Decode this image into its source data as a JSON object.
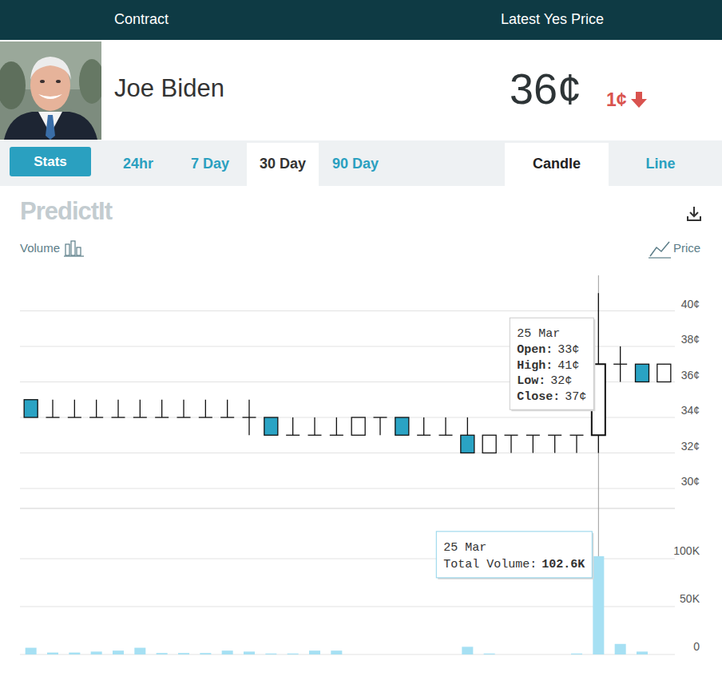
{
  "header": {
    "columns": [
      "Contract",
      "Latest Yes Price"
    ]
  },
  "contract": {
    "name": "Joe Biden",
    "price": "36¢",
    "change": "1¢"
  },
  "tabs": {
    "ranges": [
      "Stats",
      "24hr",
      "7 Day",
      "30 Day",
      "90 Day"
    ],
    "selected_range": "30 Day",
    "views": [
      "Candle",
      "Line"
    ],
    "selected_view": "Candle"
  },
  "toolbar": {
    "logo": "PredictIt",
    "volume": "Volume",
    "price": "Price"
  },
  "chart_data": [
    {
      "type": "candlestick",
      "categories": [
        null,
        null,
        null,
        null,
        null,
        null,
        null,
        null,
        null,
        null,
        null,
        null,
        null,
        null,
        null,
        null,
        null,
        null,
        null,
        null,
        null,
        null,
        null,
        null,
        null,
        null,
        "25 Mar",
        null,
        null,
        null
      ],
      "open": [
        35,
        34,
        34,
        34,
        34,
        34,
        34,
        34,
        34,
        34,
        34,
        34,
        33,
        33,
        33,
        33,
        34,
        34,
        33,
        33,
        33,
        32,
        33,
        33,
        33,
        33,
        33,
        37,
        37,
        36
      ],
      "high": [
        35,
        35,
        35,
        35,
        35,
        35,
        35,
        35,
        35,
        35,
        35,
        34,
        34,
        34,
        34,
        34,
        34,
        34,
        34,
        34,
        34,
        33,
        33,
        33,
        33,
        33,
        41,
        38,
        37,
        37
      ],
      "low": [
        34,
        34,
        34,
        34,
        34,
        34,
        34,
        34,
        34,
        34,
        33,
        33,
        33,
        33,
        33,
        33,
        33,
        33,
        33,
        33,
        32,
        32,
        32,
        32,
        32,
        32,
        32,
        36,
        36,
        36
      ],
      "close": [
        34,
        34,
        34,
        34,
        34,
        34,
        34,
        34,
        34,
        34,
        34,
        33,
        33,
        33,
        33,
        34,
        34,
        33,
        33,
        33,
        32,
        33,
        33,
        33,
        33,
        33,
        37,
        37,
        36,
        37
      ],
      "color": "#2aa3c4",
      "ylim": [
        30,
        42
      ],
      "yticks": [
        {
          "value": 30,
          "label": "30¢"
        },
        {
          "value": 32,
          "label": "32¢"
        },
        {
          "value": 34,
          "label": "34¢"
        },
        {
          "value": 36,
          "label": "36¢"
        },
        {
          "value": 38,
          "label": "38¢"
        },
        {
          "value": 40,
          "label": "40¢"
        }
      ],
      "grid": true,
      "tick_labels": "y",
      "tooltip": {
        "labels": [
          "Open:",
          "High:",
          "Low:",
          "Close:"
        ],
        "value_labels": [
          "33¢",
          "41¢",
          "32¢",
          "37¢"
        ]
      }
    },
    {
      "type": "bar",
      "categories": [
        null,
        null,
        null,
        null,
        null,
        null,
        null,
        null,
        null,
        null,
        null,
        null,
        null,
        null,
        null,
        null,
        null,
        null,
        null,
        null,
        null,
        null,
        null,
        null,
        null,
        null,
        "25 Mar",
        null,
        null,
        null
      ],
      "values": [
        7000,
        2000,
        2000,
        3000,
        4000,
        7000,
        1500,
        1500,
        1500,
        4000,
        3000,
        1000,
        1000,
        4000,
        4000,
        0,
        0,
        0,
        0,
        0,
        8000,
        1000,
        0,
        0,
        0,
        1000,
        102600,
        11000,
        3000,
        0
      ],
      "color": "#a6e0f3",
      "ylim": [
        0,
        150000
      ],
      "yticks": [
        0,
        {
          "value": 50000,
          "label": "50K"
        },
        {
          "value": 100000,
          "label": "100K"
        }
      ],
      "grid": true,
      "tick_labels": "y",
      "tooltip": {
        "label": "Total Volume:",
        "value_label": "102.6K"
      }
    }
  ]
}
